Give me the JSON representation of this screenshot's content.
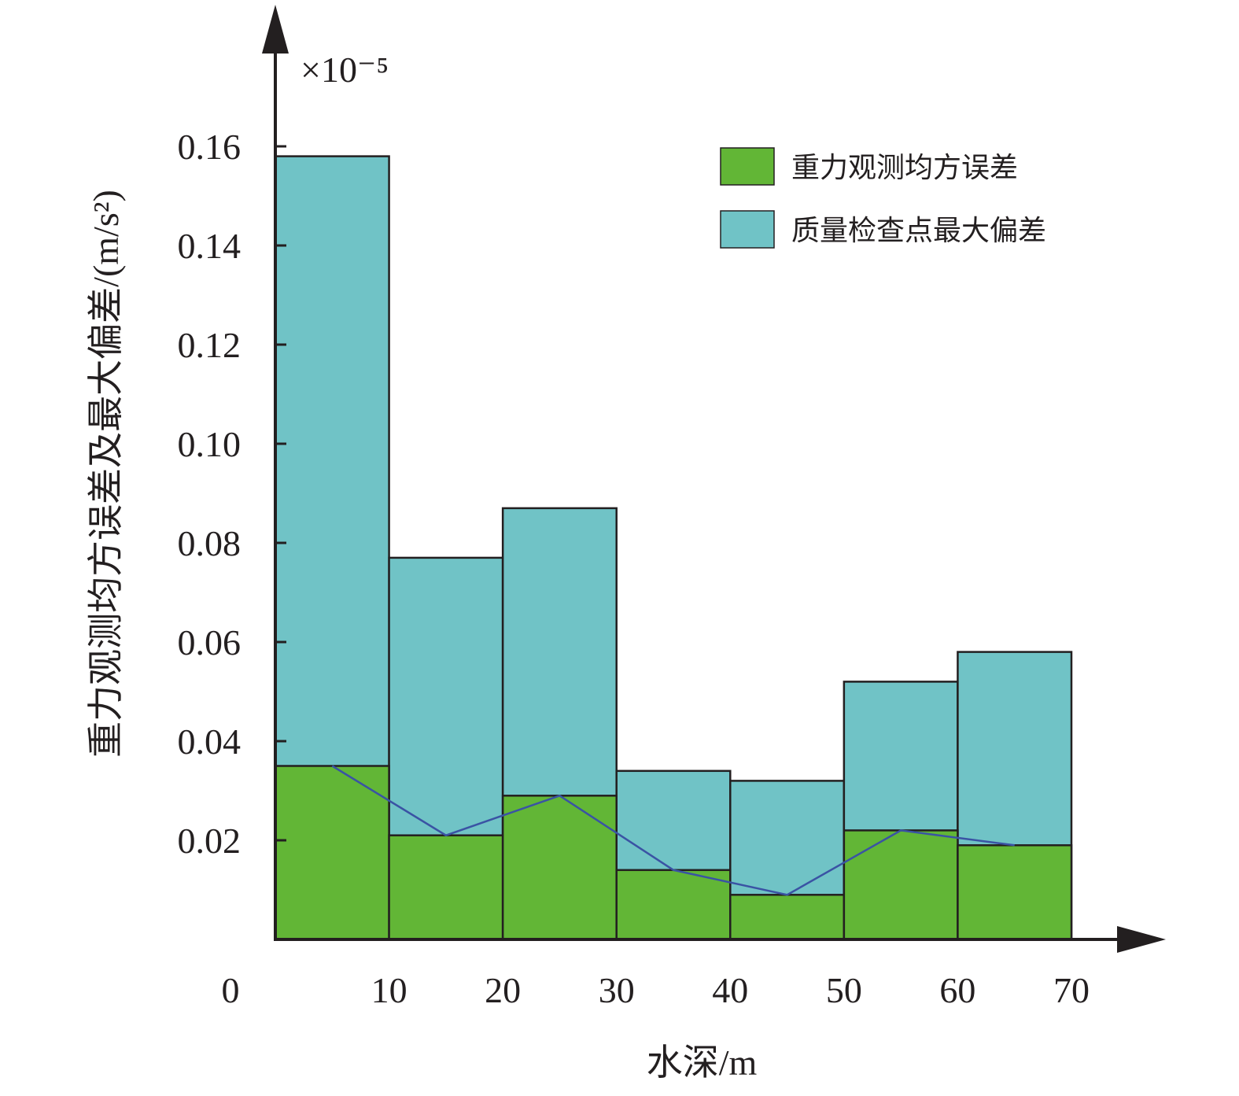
{
  "chart_data": {
    "type": "bar",
    "title": "",
    "xlabel": "水深/m",
    "ylabel": "重力观测均方误差及最大偏差/(m/s²)",
    "y_multiplier": "×10⁻⁵",
    "x_ticks": [
      "0",
      "10",
      "20",
      "30",
      "40",
      "50",
      "60",
      "70"
    ],
    "y_ticks": [
      "0.02",
      "0.04",
      "0.06",
      "0.08",
      "0.10",
      "0.12",
      "0.14",
      "0.16"
    ],
    "bins": [
      [
        0,
        10
      ],
      [
        10,
        20
      ],
      [
        20,
        30
      ],
      [
        30,
        40
      ],
      [
        40,
        50
      ],
      [
        50,
        60
      ],
      [
        60,
        70
      ]
    ],
    "xlim": [
      0,
      70
    ],
    "ylim": [
      0,
      0.16
    ],
    "legend_position": "top-right",
    "series": [
      {
        "name": "重力观测均方误差",
        "color": "#62b636",
        "values": [
          0.035,
          0.021,
          0.029,
          0.014,
          0.009,
          0.022,
          0.019
        ]
      },
      {
        "name": "质量检查点最大偏差",
        "color": "#70c3c6",
        "values": [
          0.158,
          0.077,
          0.087,
          0.034,
          0.032,
          0.052,
          0.058
        ]
      }
    ],
    "line": {
      "color": "#3a53a4",
      "follows": "重力观测均方误差"
    }
  }
}
